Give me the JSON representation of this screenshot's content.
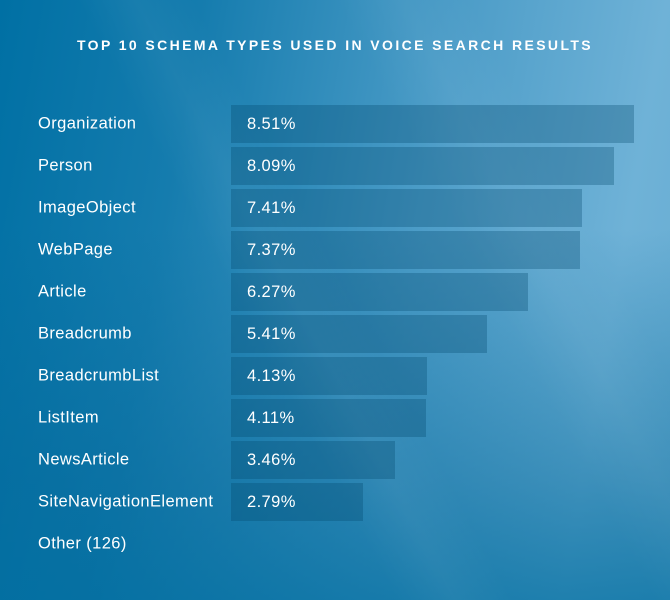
{
  "title": "TOP 10 SCHEMA TYPES USED IN VOICE SEARCH RESULTS",
  "colors": {
    "background_dark": "#0070a4",
    "background_light": "#6fb2d7",
    "bar_fill_overlay": "rgba(0,70,105,0.30)",
    "text": "#ffffff"
  },
  "chart_data": {
    "type": "bar",
    "orientation": "horizontal",
    "title": "TOP 10 SCHEMA TYPES USED IN VOICE SEARCH RESULTS",
    "categories": [
      "Organization",
      "Person",
      "ImageObject",
      "WebPage",
      "Article",
      "Breadcrumb",
      "BreadcrumbList",
      "ListItem",
      "NewsArticle",
      "SiteNavigationElement",
      "Other (126)"
    ],
    "values": [
      8.51,
      8.09,
      7.41,
      7.37,
      6.27,
      5.41,
      4.13,
      4.11,
      3.46,
      2.79,
      null
    ],
    "value_labels": [
      "8.51%",
      "8.09%",
      "7.41%",
      "7.37%",
      "6.27%",
      "5.41%",
      "4.13%",
      "4.11%",
      "3.46%",
      "2.79%",
      ""
    ],
    "unit": "%",
    "xlim": [
      0,
      8.51
    ],
    "grid": false,
    "legend": "none"
  }
}
